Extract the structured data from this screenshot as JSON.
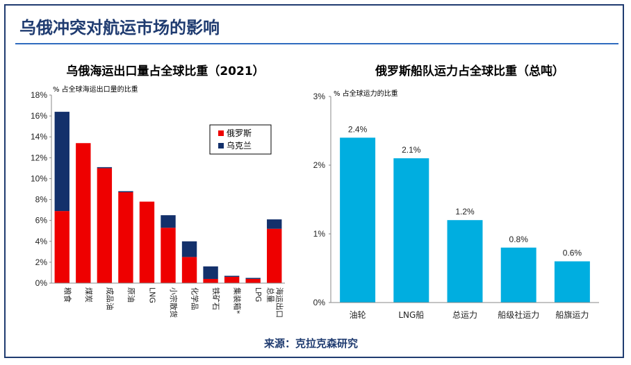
{
  "page": {
    "title": "乌俄冲突对航运市场的影响",
    "source": "来源：克拉克森研究"
  },
  "colors": {
    "russia": "#ee0000",
    "ukraine": "#13306b",
    "fleet": "#00aee0",
    "title_blue": "#1f3b70"
  },
  "chart_data": [
    {
      "type": "bar",
      "stacked": true,
      "title": "乌俄海运出口量占全球比重（2021）",
      "ylabel": "% 占全球海运出口量的比重",
      "ylim": [
        0,
        18
      ],
      "yticks": [
        "0%",
        "2%",
        "4%",
        "6%",
        "8%",
        "10%",
        "12%",
        "14%",
        "16%",
        "18%"
      ],
      "categories": [
        "粮食",
        "煤炭",
        "成品油",
        "原油",
        "LNG",
        "小宗散货",
        "化学品",
        "铁矿石",
        "集装箱*",
        "LPG",
        "海运出口总量"
      ],
      "series": [
        {
          "name": "俄罗斯",
          "color": "#ee0000",
          "values": [
            6.9,
            13.4,
            11.0,
            8.7,
            7.8,
            5.3,
            2.5,
            0.4,
            0.6,
            0.4,
            5.2
          ]
        },
        {
          "name": "乌克兰",
          "color": "#13306b",
          "values": [
            9.5,
            0.0,
            0.1,
            0.1,
            0.0,
            1.2,
            1.5,
            1.2,
            0.1,
            0.1,
            0.9
          ]
        }
      ],
      "legend": "top-right",
      "grid": false
    },
    {
      "type": "bar",
      "title": "俄罗斯船队运力占全球比重（总吨）",
      "ylabel": "% 占全球运力的比重",
      "ylim": [
        0,
        3
      ],
      "yticks": [
        "0%",
        "1%",
        "2%",
        "3%"
      ],
      "categories": [
        "油轮",
        "LNG船",
        "总运力",
        "船级社运力",
        "船旗运力"
      ],
      "values": [
        2.4,
        2.1,
        1.2,
        0.8,
        0.6
      ],
      "data_labels": [
        "2.4%",
        "2.1%",
        "1.2%",
        "0.8%",
        "0.6%"
      ],
      "color": "#00aee0",
      "grid": false
    }
  ]
}
